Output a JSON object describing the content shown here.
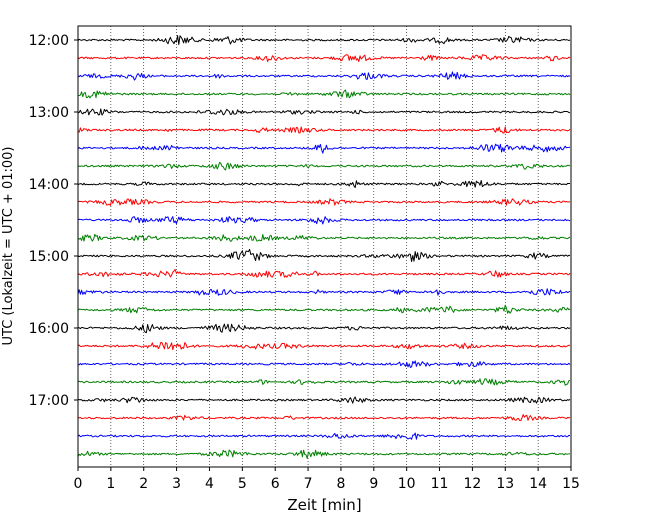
{
  "chart_data": {
    "type": "line",
    "subtype": "helicorder",
    "xlabel": "Zeit  [min]",
    "ylabel": "UTC (Lokalzeit = UTC + 01:00)",
    "xlim": [
      0,
      15
    ],
    "x_ticks": [
      "0",
      "1",
      "2",
      "3",
      "4",
      "5",
      "6",
      "7",
      "8",
      "9",
      "10",
      "11",
      "12",
      "13",
      "14",
      "15"
    ],
    "y_ticks": [
      "12:00",
      "13:00",
      "14:00",
      "15:00",
      "16:00",
      "17:00"
    ],
    "traces": [
      {
        "start": "12:00",
        "color": "#000000"
      },
      {
        "start": "12:15",
        "color": "#ff0000"
      },
      {
        "start": "12:30",
        "color": "#0000ff"
      },
      {
        "start": "12:45",
        "color": "#008000"
      },
      {
        "start": "13:00",
        "color": "#000000"
      },
      {
        "start": "13:15",
        "color": "#ff0000"
      },
      {
        "start": "13:30",
        "color": "#0000ff"
      },
      {
        "start": "13:45",
        "color": "#008000"
      },
      {
        "start": "14:00",
        "color": "#000000"
      },
      {
        "start": "14:15",
        "color": "#ff0000"
      },
      {
        "start": "14:30",
        "color": "#0000ff"
      },
      {
        "start": "14:45",
        "color": "#008000"
      },
      {
        "start": "15:00",
        "color": "#000000"
      },
      {
        "start": "15:15",
        "color": "#ff0000"
      },
      {
        "start": "15:30",
        "color": "#0000ff"
      },
      {
        "start": "15:45",
        "color": "#008000"
      },
      {
        "start": "16:00",
        "color": "#000000"
      },
      {
        "start": "16:15",
        "color": "#ff0000"
      },
      {
        "start": "16:30",
        "color": "#0000ff"
      },
      {
        "start": "16:45",
        "color": "#008000"
      },
      {
        "start": "17:00",
        "color": "#000000"
      },
      {
        "start": "17:15",
        "color": "#ff0000"
      },
      {
        "start": "17:30",
        "color": "#0000ff"
      },
      {
        "start": "17:45",
        "color": "#008000"
      }
    ],
    "grid": {
      "x": true,
      "style": "dotted"
    }
  }
}
